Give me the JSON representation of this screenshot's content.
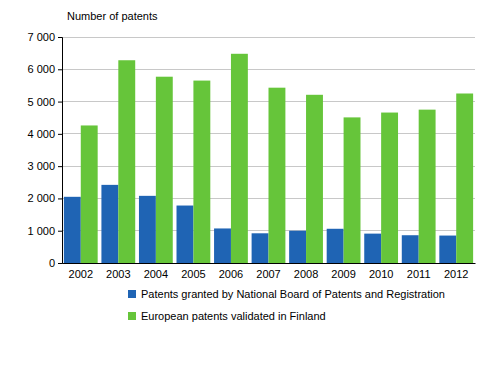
{
  "chart_data": {
    "type": "bar",
    "y_label": "Number of patents",
    "categories": [
      "2002",
      "2003",
      "2004",
      "2005",
      "2006",
      "2007",
      "2008",
      "2009",
      "2010",
      "2011",
      "2012"
    ],
    "series": [
      {
        "name": "Patents granted by National Board of Patents and Registration",
        "color": "#1f64b4",
        "values": [
          2050,
          2420,
          2080,
          1780,
          1070,
          920,
          1000,
          1060,
          910,
          860,
          850
        ]
      },
      {
        "name": "European patents validated in Finland",
        "color": "#66c53a",
        "values": [
          4260,
          6280,
          5770,
          5650,
          6480,
          5430,
          5210,
          4510,
          4660,
          4750,
          5250
        ]
      }
    ],
    "ylim": [
      0,
      7000
    ],
    "yticks": [
      0,
      {
        "value": 1000,
        "label": "1 000"
      },
      {
        "value": 2000,
        "label": "2 000"
      },
      {
        "value": 3000,
        "label": "3 000"
      },
      {
        "value": 4000,
        "label": "4 000"
      },
      {
        "value": 5000,
        "label": "5 000"
      },
      {
        "value": 6000,
        "label": "6 000"
      },
      {
        "value": 7000,
        "label": "7 000"
      }
    ],
    "grid": true,
    "legend": "bottom"
  }
}
